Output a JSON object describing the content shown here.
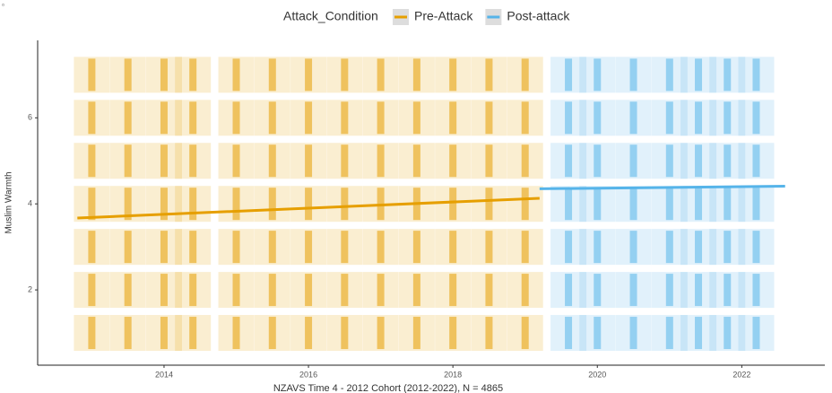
{
  "chart_data": {
    "type": "scatter",
    "x_label": "NZAVS Time 4 - 2012 Cohort (2012-2022), N = 4865",
    "y_label": "Muslim Warmth",
    "legend_title": "Attack_Condition",
    "legend_position": "top",
    "xlim": [
      2012.25,
      2023.15
    ],
    "xticks": [
      2014,
      2016,
      2018,
      2020,
      2022
    ],
    "ylim": [
      0.25,
      7.8
    ],
    "yticks": [
      2,
      4,
      6
    ],
    "series": [
      {
        "name": "Pre-Attack",
        "color": "#E69F00",
        "x": [
          2013,
          2013,
          2013,
          2013,
          2013,
          2013,
          2013,
          2013.5,
          2013.5,
          2013.5,
          2013.5,
          2013.5,
          2013.5,
          2013.5,
          2014,
          2014,
          2014,
          2014,
          2014,
          2014,
          2014,
          2014.4,
          2014.4,
          2014.4,
          2014.4,
          2014.4,
          2014.4,
          2014.4,
          2015,
          2015,
          2015,
          2015,
          2015,
          2015,
          2015,
          2015.5,
          2015.5,
          2015.5,
          2015.5,
          2015.5,
          2015.5,
          2015.5,
          2016,
          2016,
          2016,
          2016,
          2016,
          2016,
          2016,
          2016.5,
          2016.5,
          2016.5,
          2016.5,
          2016.5,
          2016.5,
          2016.5,
          2017,
          2017,
          2017,
          2017,
          2017,
          2017,
          2017,
          2017.5,
          2017.5,
          2017.5,
          2017.5,
          2017.5,
          2017.5,
          2017.5,
          2018,
          2018,
          2018,
          2018,
          2018,
          2018,
          2018,
          2018.5,
          2018.5,
          2018.5,
          2018.5,
          2018.5,
          2018.5,
          2018.5,
          2019,
          2019,
          2019,
          2019,
          2019,
          2019,
          2019
        ],
        "values": [
          1,
          2,
          3,
          4,
          5,
          6,
          7,
          1,
          2,
          3,
          4,
          5,
          6,
          7,
          1,
          2,
          3,
          4,
          5,
          6,
          7,
          1,
          2,
          3,
          4,
          5,
          6,
          7,
          1,
          2,
          3,
          4,
          5,
          6,
          7,
          1,
          2,
          3,
          4,
          5,
          6,
          7,
          1,
          2,
          3,
          4,
          5,
          6,
          7,
          1,
          2,
          3,
          4,
          5,
          6,
          7,
          1,
          2,
          3,
          4,
          5,
          6,
          7,
          1,
          2,
          3,
          4,
          5,
          6,
          7,
          1,
          2,
          3,
          4,
          5,
          6,
          7,
          1,
          2,
          3,
          4,
          5,
          6,
          7,
          1,
          2,
          3,
          4,
          5,
          6,
          7
        ],
        "fit": {
          "x": [
            2012.8,
            2019.2
          ],
          "values": [
            3.67,
            4.13
          ]
        }
      },
      {
        "name": "Post-attack",
        "color": "#56B4E9",
        "x": [
          2019.6,
          2019.6,
          2019.6,
          2019.6,
          2019.6,
          2019.6,
          2019.6,
          2020,
          2020,
          2020,
          2020,
          2020,
          2020,
          2020,
          2020.5,
          2020.5,
          2020.5,
          2020.5,
          2020.5,
          2020.5,
          2020.5,
          2021,
          2021,
          2021,
          2021,
          2021,
          2021,
          2021,
          2021.4,
          2021.4,
          2021.4,
          2021.4,
          2021.4,
          2021.4,
          2021.4,
          2021.8,
          2021.8,
          2021.8,
          2021.8,
          2021.8,
          2021.8,
          2021.8,
          2022.2,
          2022.2,
          2022.2,
          2022.2,
          2022.2,
          2022.2,
          2022.2
        ],
        "values": [
          1,
          2,
          3,
          4,
          5,
          6,
          7,
          1,
          2,
          3,
          4,
          5,
          6,
          7,
          1,
          2,
          3,
          4,
          5,
          6,
          7,
          1,
          2,
          3,
          4,
          5,
          6,
          7,
          1,
          2,
          3,
          4,
          5,
          6,
          7,
          1,
          2,
          3,
          4,
          5,
          6,
          7,
          1,
          2,
          3,
          4,
          5,
          6,
          7
        ],
        "fit": {
          "x": [
            2019.2,
            2022.6
          ],
          "values": [
            4.35,
            4.41
          ]
        }
      }
    ]
  }
}
